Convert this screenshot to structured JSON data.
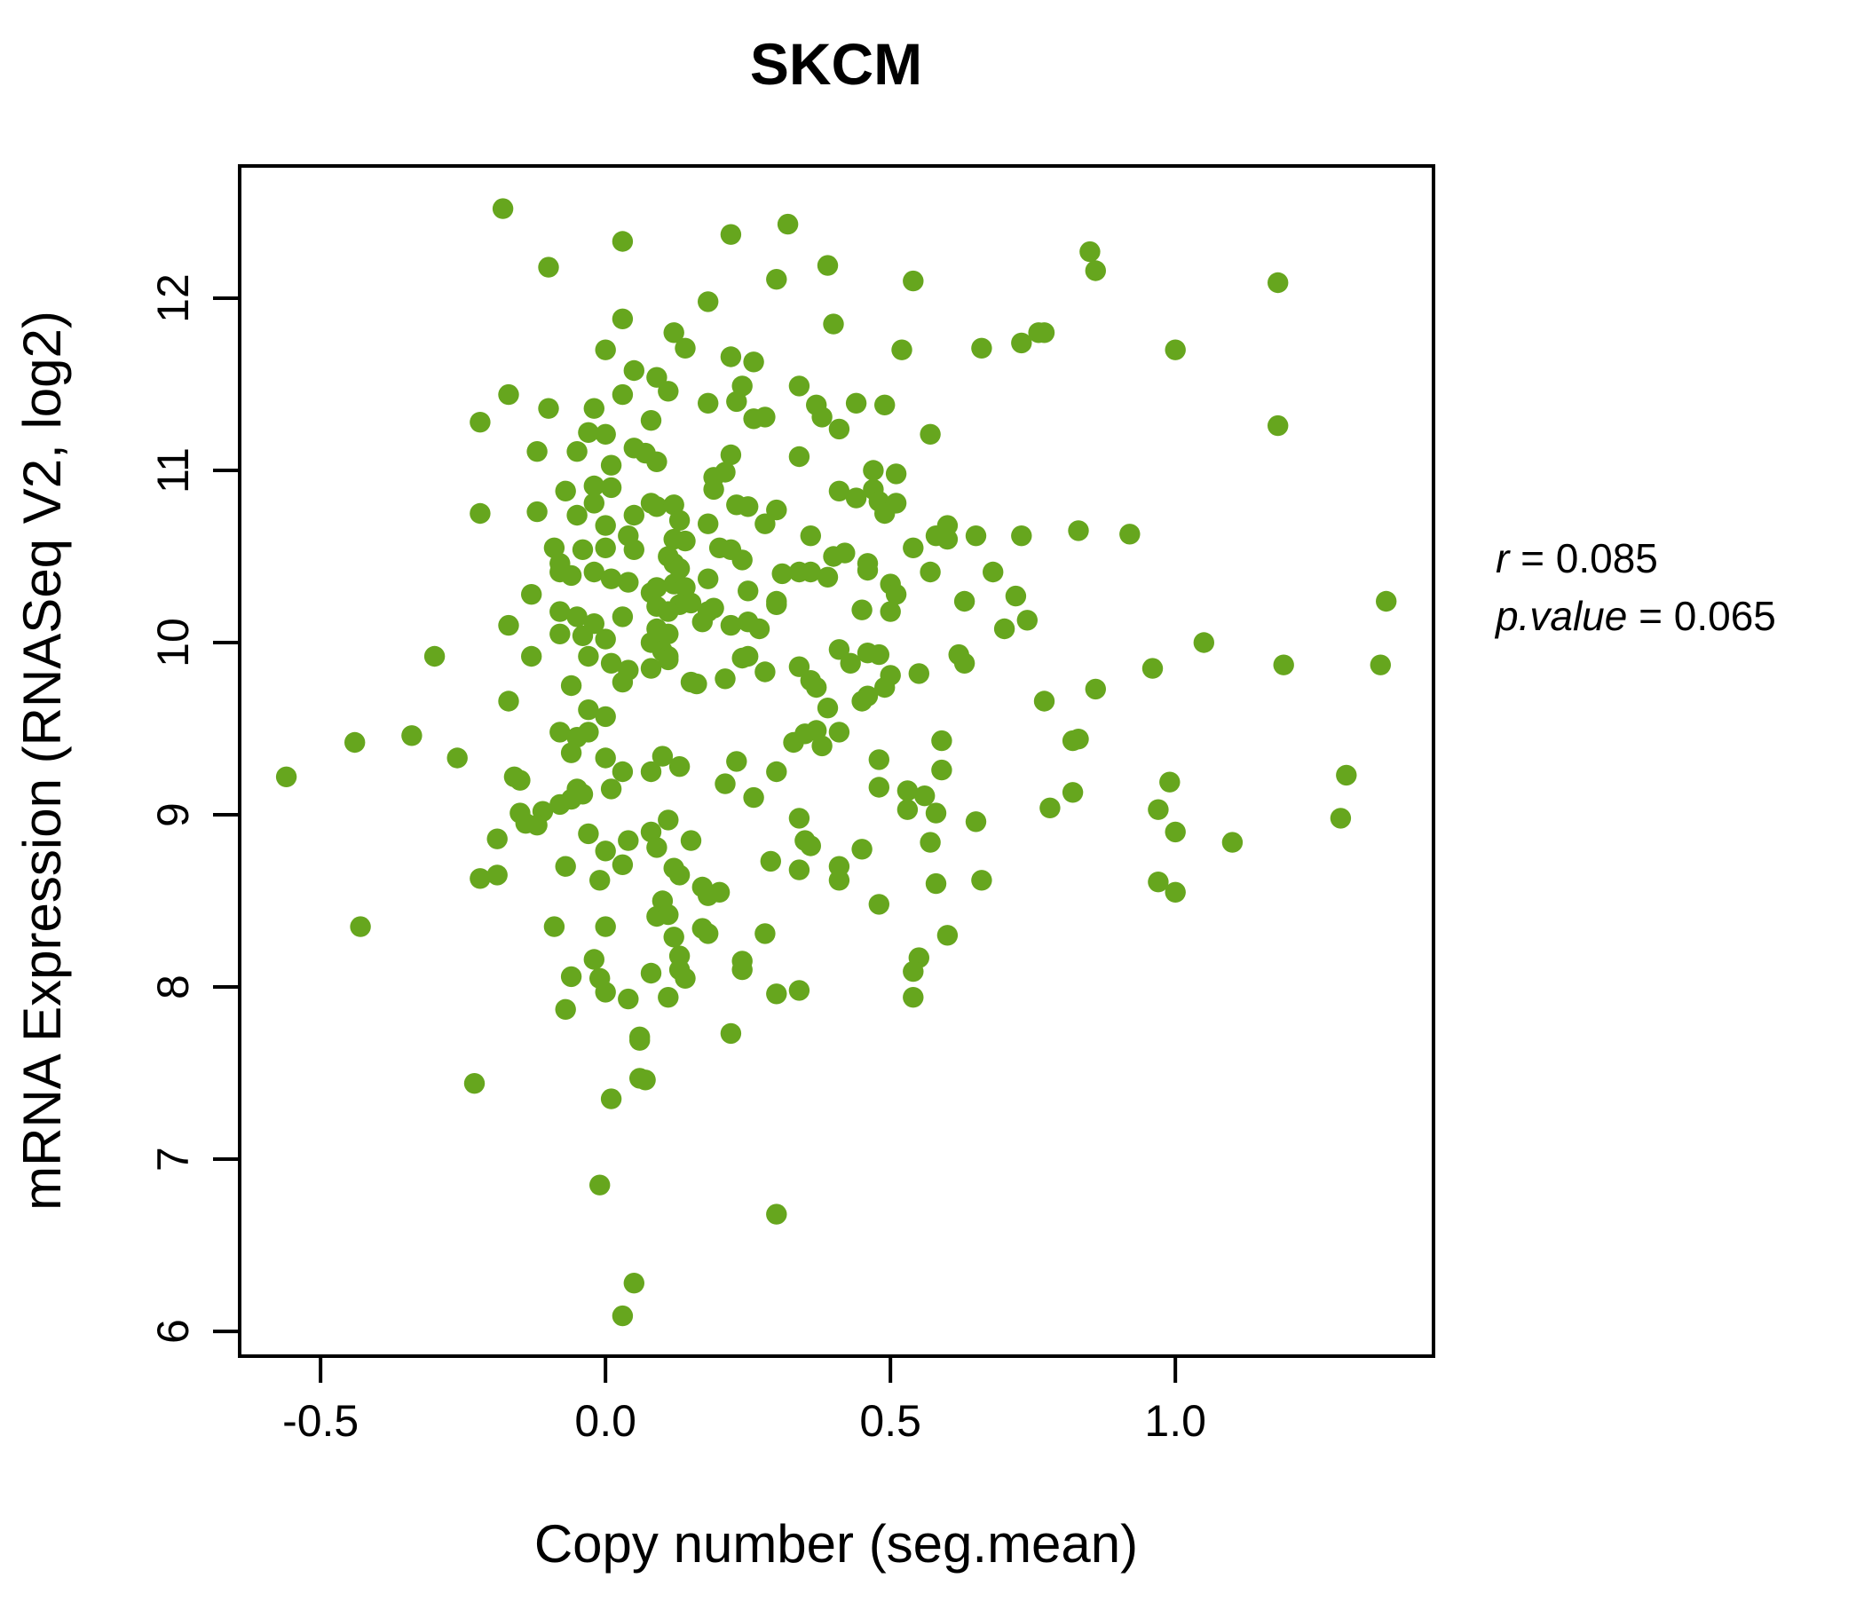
{
  "title": "SKCM",
  "colors": {
    "point": "#66A61E",
    "title": "#66A61E",
    "axis": "#000000",
    "background": "#ffffff"
  },
  "annotation": {
    "r_var": "r",
    "r_rest": " = 0.085",
    "p_var": "p.value",
    "p_rest": " = 0.065"
  },
  "chart_data": {
    "type": "scatter",
    "title": "SKCM",
    "xlabel": "Copy number (seg.mean)",
    "ylabel": "mRNA Expression (RNASeq V2, log2)",
    "x_ticks": [
      -0.5,
      0.0,
      0.5,
      1.0
    ],
    "x_tick_labels": [
      "-0.5",
      "0.0",
      "0.5",
      "1.0"
    ],
    "y_ticks": [
      6,
      7,
      8,
      9,
      10,
      11,
      12
    ],
    "y_tick_labels": [
      "6",
      "7",
      "8",
      "9",
      "10",
      "11",
      "12"
    ],
    "xlim": [
      -0.642,
      1.453
    ],
    "ylim": [
      5.856,
      12.768
    ],
    "grid": false,
    "legend": "none",
    "correlation_r": 0.085,
    "p_value": 0.065,
    "points": [
      [
        -0.18,
        12.52
      ],
      [
        0.03,
        12.33
      ],
      [
        -0.1,
        12.18
      ],
      [
        0.03,
        11.88
      ],
      [
        0.0,
        11.7
      ],
      [
        0.05,
        11.58
      ],
      [
        -0.17,
        11.44
      ],
      [
        0.03,
        11.44
      ],
      [
        -0.1,
        11.36
      ],
      [
        -0.02,
        11.36
      ],
      [
        -0.22,
        11.28
      ],
      [
        -0.03,
        11.22
      ],
      [
        0.0,
        11.21
      ],
      [
        -0.12,
        11.11
      ],
      [
        -0.05,
        11.11
      ],
      [
        0.05,
        11.13
      ],
      [
        0.01,
        11.03
      ],
      [
        -0.02,
        10.91
      ],
      [
        0.01,
        10.9
      ],
      [
        -0.07,
        10.88
      ],
      [
        -0.02,
        10.81
      ],
      [
        -0.22,
        10.75
      ],
      [
        -0.12,
        10.76
      ],
      [
        -0.05,
        10.74
      ],
      [
        0.05,
        10.74
      ],
      [
        0.0,
        10.68
      ],
      [
        0.04,
        10.62
      ],
      [
        -0.09,
        10.55
      ],
      [
        -0.04,
        10.54
      ],
      [
        0.0,
        10.55
      ],
      [
        0.05,
        10.54
      ],
      [
        -0.08,
        10.46
      ],
      [
        0.32,
        12.43
      ],
      [
        0.22,
        12.37
      ],
      [
        0.39,
        12.19
      ],
      [
        0.3,
        12.11
      ],
      [
        0.54,
        12.1
      ],
      [
        0.18,
        11.98
      ],
      [
        0.4,
        11.85
      ],
      [
        0.12,
        11.8
      ],
      [
        0.14,
        11.71
      ],
      [
        0.52,
        11.7
      ],
      [
        0.66,
        11.71
      ],
      [
        0.73,
        11.74
      ],
      [
        0.76,
        11.8
      ],
      [
        0.22,
        11.66
      ],
      [
        0.26,
        11.63
      ],
      [
        0.09,
        11.54
      ],
      [
        0.11,
        11.46
      ],
      [
        0.24,
        11.49
      ],
      [
        0.34,
        11.49
      ],
      [
        0.18,
        11.39
      ],
      [
        0.23,
        11.4
      ],
      [
        0.37,
        11.38
      ],
      [
        0.38,
        11.31
      ],
      [
        0.44,
        11.39
      ],
      [
        0.49,
        11.38
      ],
      [
        0.08,
        11.29
      ],
      [
        0.26,
        11.3
      ],
      [
        0.28,
        11.31
      ],
      [
        0.41,
        11.24
      ],
      [
        0.57,
        11.21
      ],
      [
        0.07,
        11.1
      ],
      [
        0.09,
        11.05
      ],
      [
        0.22,
        11.09
      ],
      [
        0.34,
        11.08
      ],
      [
        0.47,
        11.0
      ],
      [
        0.51,
        10.98
      ],
      [
        0.19,
        10.96
      ],
      [
        0.21,
        10.99
      ],
      [
        0.19,
        10.89
      ],
      [
        0.41,
        10.88
      ],
      [
        0.44,
        10.84
      ],
      [
        0.47,
        10.89
      ],
      [
        0.48,
        10.82
      ],
      [
        0.08,
        10.81
      ],
      [
        0.09,
        10.79
      ],
      [
        0.12,
        10.8
      ],
      [
        0.23,
        10.8
      ],
      [
        0.25,
        10.79
      ],
      [
        0.51,
        10.81
      ],
      [
        0.49,
        10.75
      ],
      [
        0.13,
        10.71
      ],
      [
        0.18,
        10.69
      ],
      [
        0.28,
        10.69
      ],
      [
        0.3,
        10.77
      ],
      [
        0.6,
        10.68
      ],
      [
        0.58,
        10.62
      ],
      [
        0.6,
        10.6
      ],
      [
        0.65,
        10.62
      ],
      [
        0.73,
        10.62
      ],
      [
        0.36,
        10.62
      ],
      [
        0.12,
        10.6
      ],
      [
        0.14,
        10.59
      ],
      [
        0.2,
        10.55
      ],
      [
        0.22,
        10.54
      ],
      [
        0.54,
        10.55
      ],
      [
        0.4,
        10.5
      ],
      [
        0.42,
        10.52
      ],
      [
        0.46,
        10.46
      ],
      [
        0.24,
        10.48
      ],
      [
        0.11,
        10.5
      ],
      [
        0.12,
        10.46
      ],
      [
        0.85,
        12.27
      ],
      [
        0.86,
        12.16
      ],
      [
        1.18,
        12.09
      ],
      [
        0.77,
        11.8
      ],
      [
        1.0,
        11.7
      ],
      [
        1.18,
        11.26
      ],
      [
        0.83,
        10.65
      ],
      [
        0.92,
        10.63
      ],
      [
        -0.13,
        10.28
      ],
      [
        -0.08,
        10.41
      ],
      [
        -0.06,
        10.39
      ],
      [
        -0.02,
        10.41
      ],
      [
        0.01,
        10.37
      ],
      [
        0.04,
        10.35
      ],
      [
        -0.17,
        10.1
      ],
      [
        -0.08,
        10.18
      ],
      [
        -0.05,
        10.15
      ],
      [
        -0.02,
        10.11
      ],
      [
        0.03,
        10.15
      ],
      [
        -0.08,
        10.05
      ],
      [
        -0.04,
        10.04
      ],
      [
        0.0,
        10.02
      ],
      [
        -0.13,
        9.92
      ],
      [
        -0.03,
        9.92
      ],
      [
        0.01,
        9.88
      ],
      [
        0.04,
        9.84
      ],
      [
        -0.3,
        9.92
      ],
      [
        -0.06,
        9.75
      ],
      [
        0.03,
        9.77
      ],
      [
        -0.17,
        9.66
      ],
      [
        -0.03,
        9.61
      ],
      [
        0.0,
        9.57
      ],
      [
        -0.44,
        9.42
      ],
      [
        -0.34,
        9.46
      ],
      [
        -0.26,
        9.33
      ],
      [
        -0.08,
        9.48
      ],
      [
        -0.05,
        9.45
      ],
      [
        -0.03,
        9.48
      ],
      [
        -0.06,
        9.36
      ],
      [
        0.0,
        9.33
      ],
      [
        0.03,
        9.25
      ],
      [
        -0.56,
        9.22
      ],
      [
        -0.16,
        9.22
      ],
      [
        -0.15,
        9.2
      ],
      [
        0.01,
        9.15
      ],
      [
        -0.05,
        9.15
      ],
      [
        -0.15,
        9.01
      ],
      [
        -0.14,
        8.95
      ],
      [
        -0.11,
        9.02
      ],
      [
        -0.08,
        9.06
      ],
      [
        -0.06,
        9.09
      ],
      [
        -0.04,
        9.12
      ],
      [
        -0.12,
        8.94
      ],
      [
        -0.19,
        8.86
      ],
      [
        -0.03,
        8.89
      ],
      [
        0.0,
        8.79
      ],
      [
        -0.07,
        8.7
      ],
      [
        -0.22,
        8.63
      ],
      [
        -0.19,
        8.65
      ],
      [
        -0.01,
        8.62
      ],
      [
        0.03,
        8.71
      ],
      [
        0.04,
        8.85
      ],
      [
        -0.43,
        8.35
      ],
      [
        -0.09,
        8.35
      ],
      [
        0.0,
        8.35
      ],
      [
        -0.02,
        8.16
      ],
      [
        0.13,
        10.43
      ],
      [
        0.18,
        10.37
      ],
      [
        0.25,
        10.3
      ],
      [
        0.31,
        10.4
      ],
      [
        0.34,
        10.41
      ],
      [
        0.36,
        10.41
      ],
      [
        0.39,
        10.38
      ],
      [
        0.46,
        10.42
      ],
      [
        0.5,
        10.34
      ],
      [
        0.51,
        10.28
      ],
      [
        0.57,
        10.41
      ],
      [
        0.68,
        10.41
      ],
      [
        0.63,
        10.24
      ],
      [
        0.72,
        10.27
      ],
      [
        0.08,
        10.29
      ],
      [
        0.09,
        10.32
      ],
      [
        0.12,
        10.34
      ],
      [
        0.14,
        10.32
      ],
      [
        0.13,
        10.22
      ],
      [
        0.15,
        10.23
      ],
      [
        0.09,
        10.21
      ],
      [
        0.11,
        10.18
      ],
      [
        0.19,
        10.2
      ],
      [
        0.22,
        10.1
      ],
      [
        0.25,
        10.12
      ],
      [
        0.27,
        10.08
      ],
      [
        0.09,
        10.08
      ],
      [
        0.11,
        10.05
      ],
      [
        0.08,
        10.0
      ],
      [
        0.1,
        9.95
      ],
      [
        0.11,
        9.92
      ],
      [
        0.17,
        10.12
      ],
      [
        0.18,
        10.18
      ],
      [
        0.3,
        10.22
      ],
      [
        0.3,
        10.24
      ],
      [
        0.45,
        10.19
      ],
      [
        0.5,
        10.18
      ],
      [
        0.7,
        10.08
      ],
      [
        0.74,
        10.13
      ],
      [
        0.08,
        9.85
      ],
      [
        0.11,
        9.9
      ],
      [
        0.15,
        9.77
      ],
      [
        0.16,
        9.76
      ],
      [
        0.21,
        9.79
      ],
      [
        0.24,
        9.91
      ],
      [
        0.25,
        9.92
      ],
      [
        0.28,
        9.83
      ],
      [
        0.41,
        9.96
      ],
      [
        0.43,
        9.88
      ],
      [
        0.46,
        9.94
      ],
      [
        0.48,
        9.93
      ],
      [
        0.5,
        9.81
      ],
      [
        0.49,
        9.74
      ],
      [
        0.46,
        9.69
      ],
      [
        0.45,
        9.66
      ],
      [
        0.55,
        9.82
      ],
      [
        0.62,
        9.93
      ],
      [
        0.63,
        9.88
      ],
      [
        0.34,
        9.86
      ],
      [
        0.36,
        9.78
      ],
      [
        0.37,
        9.74
      ],
      [
        0.39,
        9.62
      ],
      [
        0.1,
        9.34
      ],
      [
        0.13,
        9.28
      ],
      [
        0.08,
        9.25
      ],
      [
        0.23,
        9.31
      ],
      [
        0.3,
        9.25
      ],
      [
        0.33,
        9.42
      ],
      [
        0.35,
        9.47
      ],
      [
        0.37,
        9.49
      ],
      [
        0.38,
        9.4
      ],
      [
        0.41,
        9.48
      ],
      [
        0.21,
        9.18
      ],
      [
        0.26,
        9.1
      ],
      [
        0.59,
        9.43
      ],
      [
        0.48,
        9.32
      ],
      [
        0.59,
        9.26
      ],
      [
        0.48,
        9.16
      ],
      [
        0.53,
        9.14
      ],
      [
        0.56,
        9.11
      ],
      [
        0.53,
        9.03
      ],
      [
        0.58,
        9.01
      ],
      [
        0.65,
        8.96
      ],
      [
        0.11,
        8.97
      ],
      [
        0.08,
        8.9
      ],
      [
        0.15,
        8.85
      ],
      [
        0.09,
        8.81
      ],
      [
        0.12,
        8.69
      ],
      [
        0.13,
        8.65
      ],
      [
        0.34,
        8.98
      ],
      [
        0.35,
        8.85
      ],
      [
        0.36,
        8.82
      ],
      [
        0.29,
        8.73
      ],
      [
        0.34,
        8.68
      ],
      [
        0.41,
        8.7
      ],
      [
        0.41,
        8.62
      ],
      [
        0.45,
        8.8
      ],
      [
        0.57,
        8.84
      ],
      [
        0.58,
        8.6
      ],
      [
        0.66,
        8.62
      ],
      [
        0.48,
        8.48
      ],
      [
        0.17,
        8.58
      ],
      [
        0.18,
        8.53
      ],
      [
        0.2,
        8.55
      ],
      [
        0.1,
        8.5
      ],
      [
        0.09,
        8.41
      ],
      [
        0.11,
        8.42
      ],
      [
        0.17,
        8.34
      ],
      [
        0.18,
        8.31
      ],
      [
        0.12,
        8.29
      ],
      [
        0.28,
        8.31
      ],
      [
        0.6,
        8.3
      ],
      [
        0.13,
        8.18
      ],
      [
        0.24,
        8.15
      ],
      [
        0.55,
        8.17
      ],
      [
        1.37,
        10.24
      ],
      [
        1.05,
        10.0
      ],
      [
        0.96,
        9.85
      ],
      [
        1.19,
        9.87
      ],
      [
        1.36,
        9.87
      ],
      [
        0.86,
        9.73
      ],
      [
        0.77,
        9.66
      ],
      [
        0.82,
        9.43
      ],
      [
        0.83,
        9.44
      ],
      [
        0.99,
        9.19
      ],
      [
        0.82,
        9.13
      ],
      [
        0.78,
        9.04
      ],
      [
        0.97,
        9.03
      ],
      [
        1.0,
        8.9
      ],
      [
        1.1,
        8.84
      ],
      [
        1.3,
        9.23
      ],
      [
        1.29,
        8.98
      ],
      [
        0.97,
        8.61
      ],
      [
        1.0,
        8.55
      ],
      [
        -0.06,
        8.06
      ],
      [
        -0.01,
        8.05
      ],
      [
        0.0,
        7.97
      ],
      [
        0.04,
        7.93
      ],
      [
        -0.07,
        7.87
      ],
      [
        0.06,
        7.69
      ],
      [
        -0.23,
        7.44
      ],
      [
        0.01,
        7.35
      ],
      [
        0.06,
        7.47
      ],
      [
        -0.01,
        6.85
      ],
      [
        0.05,
        6.28
      ],
      [
        0.03,
        6.09
      ],
      [
        0.08,
        8.08
      ],
      [
        0.13,
        8.1
      ],
      [
        0.14,
        8.05
      ],
      [
        0.24,
        8.1
      ],
      [
        0.11,
        7.94
      ],
      [
        0.3,
        7.96
      ],
      [
        0.34,
        7.98
      ],
      [
        0.54,
        8.09
      ],
      [
        0.54,
        7.94
      ],
      [
        0.22,
        7.73
      ],
      [
        0.06,
        7.71
      ],
      [
        0.07,
        7.46
      ],
      [
        0.3,
        6.68
      ]
    ]
  }
}
